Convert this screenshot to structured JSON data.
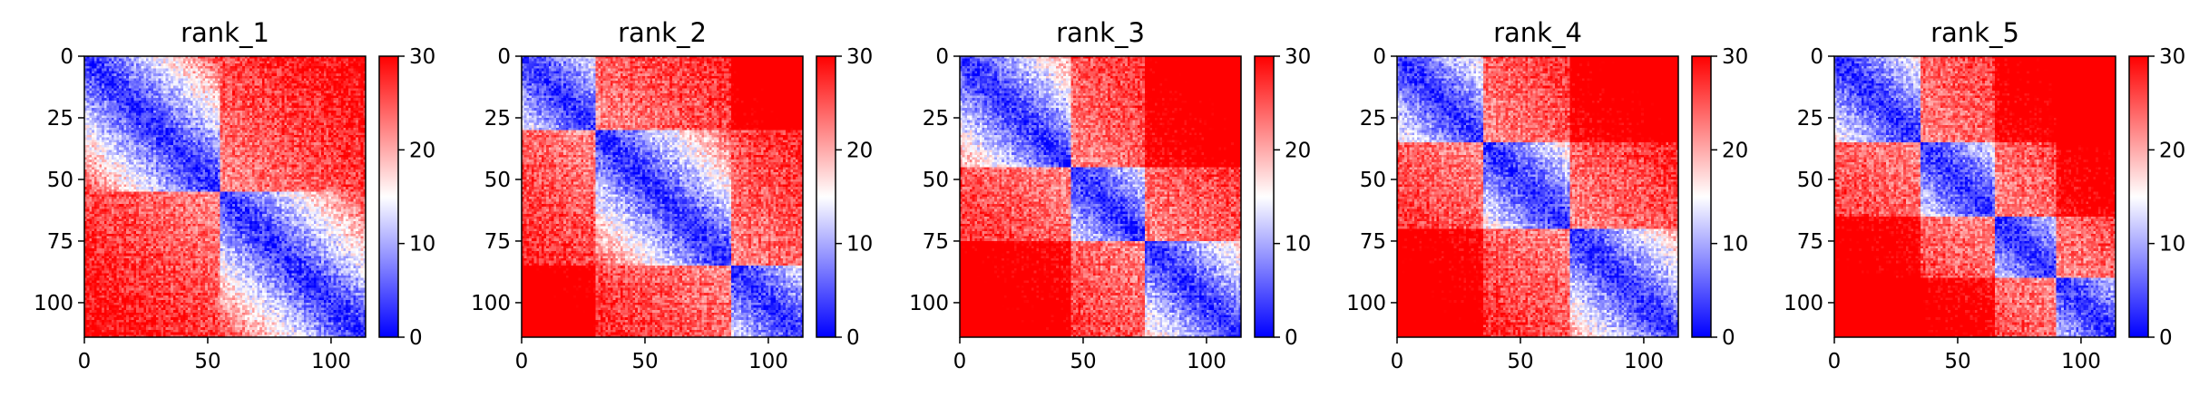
{
  "chart_data": [
    {
      "type": "heatmap",
      "title": "rank_1",
      "xlabel": "",
      "ylabel": "",
      "x_ticks": [
        0,
        50,
        100
      ],
      "y_ticks": [
        0,
        25,
        50,
        75,
        100
      ],
      "xlim": [
        0,
        114
      ],
      "ylim": [
        114,
        0
      ],
      "matrix_size": 114,
      "diagonal_domains": [
        [
          0,
          55
        ],
        [
          55,
          114
        ]
      ],
      "colorbar": {
        "min": 0,
        "max": 30,
        "ticks": [
          0,
          10,
          20,
          30
        ],
        "colormap": "bwr"
      }
    },
    {
      "type": "heatmap",
      "title": "rank_2",
      "xlabel": "",
      "ylabel": "",
      "x_ticks": [
        0,
        50,
        100
      ],
      "y_ticks": [
        0,
        25,
        50,
        75,
        100
      ],
      "xlim": [
        0,
        114
      ],
      "ylim": [
        114,
        0
      ],
      "matrix_size": 114,
      "diagonal_domains": [
        [
          0,
          30
        ],
        [
          30,
          85
        ],
        [
          85,
          114
        ]
      ],
      "colorbar": {
        "min": 0,
        "max": 30,
        "ticks": [
          0,
          10,
          20,
          30
        ],
        "colormap": "bwr"
      }
    },
    {
      "type": "heatmap",
      "title": "rank_3",
      "xlabel": "",
      "ylabel": "",
      "x_ticks": [
        0,
        50,
        100
      ],
      "y_ticks": [
        0,
        25,
        50,
        75,
        100
      ],
      "xlim": [
        0,
        114
      ],
      "ylim": [
        114,
        0
      ],
      "matrix_size": 114,
      "diagonal_domains": [
        [
          0,
          45
        ],
        [
          45,
          75
        ],
        [
          75,
          114
        ]
      ],
      "colorbar": {
        "min": 0,
        "max": 30,
        "ticks": [
          0,
          10,
          20,
          30
        ],
        "colormap": "bwr"
      }
    },
    {
      "type": "heatmap",
      "title": "rank_4",
      "xlabel": "",
      "ylabel": "",
      "x_ticks": [
        0,
        50,
        100
      ],
      "y_ticks": [
        0,
        25,
        50,
        75,
        100
      ],
      "xlim": [
        0,
        114
      ],
      "ylim": [
        114,
        0
      ],
      "matrix_size": 114,
      "diagonal_domains": [
        [
          0,
          35
        ],
        [
          35,
          70
        ],
        [
          70,
          114
        ]
      ],
      "colorbar": {
        "min": 0,
        "max": 30,
        "ticks": [
          0,
          10,
          20,
          30
        ],
        "colormap": "bwr"
      }
    },
    {
      "type": "heatmap",
      "title": "rank_5",
      "xlabel": "",
      "ylabel": "",
      "x_ticks": [
        0,
        50,
        100
      ],
      "y_ticks": [
        0,
        25,
        50,
        75,
        100
      ],
      "xlim": [
        0,
        114
      ],
      "ylim": [
        114,
        0
      ],
      "matrix_size": 114,
      "diagonal_domains": [
        [
          0,
          35
        ],
        [
          35,
          65
        ],
        [
          65,
          90
        ],
        [
          90,
          114
        ]
      ],
      "colorbar": {
        "min": 0,
        "max": 30,
        "ticks": [
          0,
          10,
          20,
          30
        ],
        "colormap": "bwr"
      }
    }
  ]
}
